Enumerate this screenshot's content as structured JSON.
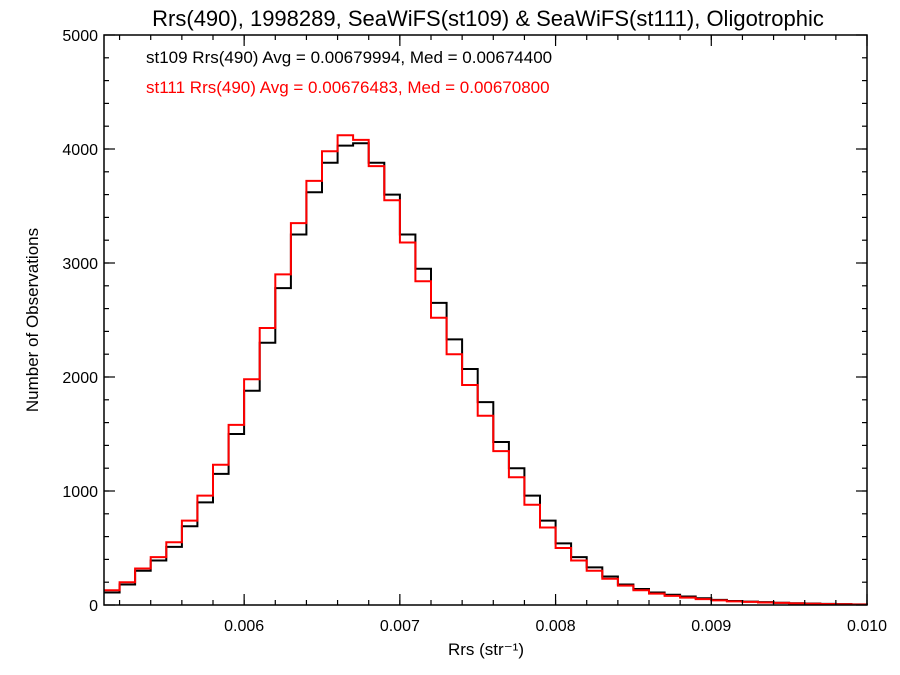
{
  "chart_data": {
    "type": "line",
    "step": true,
    "title": "Rrs(490), 1998289, SeaWiFS(st109) & SeaWiFS(st111), Oligotrophic",
    "xlabel": "Rrs (str⁻¹)",
    "ylabel": "Number of Observations",
    "xlim": [
      0.0051,
      0.01
    ],
    "ylim": [
      0,
      5000
    ],
    "xticks": [
      0.006,
      0.007,
      0.008,
      0.009,
      0.01
    ],
    "xtick_labels": [
      "0.006",
      "0.007",
      "0.008",
      "0.009",
      "0.010"
    ],
    "yticks": [
      0,
      1000,
      2000,
      3000,
      4000,
      5000
    ],
    "ytick_labels": [
      "0",
      "1000",
      "2000",
      "3000",
      "4000",
      "5000"
    ],
    "grid": false,
    "annotations": [
      {
        "text": "st109 Rrs(490) Avg = 0.00679994, Med = 0.00674400",
        "color": "#000000"
      },
      {
        "text": "st111 Rrs(490) Avg = 0.00676483, Med = 0.00670800",
        "color": "#ff0000"
      }
    ],
    "series": [
      {
        "name": "st109",
        "color": "#000000",
        "points": [
          [
            0.0051,
            110
          ],
          [
            0.0052,
            180
          ],
          [
            0.0053,
            300
          ],
          [
            0.0054,
            390
          ],
          [
            0.0055,
            510
          ],
          [
            0.0056,
            690
          ],
          [
            0.0057,
            900
          ],
          [
            0.0058,
            1150
          ],
          [
            0.0059,
            1500
          ],
          [
            0.006,
            1880
          ],
          [
            0.0061,
            2300
          ],
          [
            0.0062,
            2780
          ],
          [
            0.0063,
            3250
          ],
          [
            0.0064,
            3620
          ],
          [
            0.0065,
            3880
          ],
          [
            0.0066,
            4030
          ],
          [
            0.0067,
            4050
          ],
          [
            0.0068,
            3880
          ],
          [
            0.0069,
            3600
          ],
          [
            0.007,
            3250
          ],
          [
            0.0071,
            2950
          ],
          [
            0.0072,
            2650
          ],
          [
            0.0073,
            2330
          ],
          [
            0.0074,
            2070
          ],
          [
            0.0075,
            1780
          ],
          [
            0.0076,
            1430
          ],
          [
            0.0077,
            1200
          ],
          [
            0.0078,
            960
          ],
          [
            0.0079,
            740
          ],
          [
            0.008,
            540
          ],
          [
            0.0081,
            420
          ],
          [
            0.0082,
            330
          ],
          [
            0.0083,
            250
          ],
          [
            0.0084,
            180
          ],
          [
            0.0085,
            140
          ],
          [
            0.0086,
            110
          ],
          [
            0.0087,
            90
          ],
          [
            0.0088,
            75
          ],
          [
            0.0089,
            60
          ],
          [
            0.009,
            45
          ],
          [
            0.0091,
            35
          ],
          [
            0.0092,
            30
          ],
          [
            0.0093,
            25
          ],
          [
            0.0094,
            20
          ],
          [
            0.0095,
            16
          ],
          [
            0.0096,
            13
          ],
          [
            0.0097,
            10
          ],
          [
            0.0098,
            8
          ],
          [
            0.0099,
            5
          ],
          [
            0.01,
            3
          ]
        ]
      },
      {
        "name": "st111",
        "color": "#ff0000",
        "points": [
          [
            0.0051,
            130
          ],
          [
            0.0052,
            200
          ],
          [
            0.0053,
            320
          ],
          [
            0.0054,
            420
          ],
          [
            0.0055,
            550
          ],
          [
            0.0056,
            740
          ],
          [
            0.0057,
            960
          ],
          [
            0.0058,
            1230
          ],
          [
            0.0059,
            1580
          ],
          [
            0.006,
            1980
          ],
          [
            0.0061,
            2430
          ],
          [
            0.0062,
            2900
          ],
          [
            0.0063,
            3350
          ],
          [
            0.0064,
            3720
          ],
          [
            0.0065,
            3980
          ],
          [
            0.0066,
            4120
          ],
          [
            0.0067,
            4080
          ],
          [
            0.0068,
            3850
          ],
          [
            0.0069,
            3550
          ],
          [
            0.007,
            3180
          ],
          [
            0.0071,
            2840
          ],
          [
            0.0072,
            2520
          ],
          [
            0.0073,
            2200
          ],
          [
            0.0074,
            1930
          ],
          [
            0.0075,
            1660
          ],
          [
            0.0076,
            1350
          ],
          [
            0.0077,
            1120
          ],
          [
            0.0078,
            880
          ],
          [
            0.0079,
            680
          ],
          [
            0.008,
            500
          ],
          [
            0.0081,
            390
          ],
          [
            0.0082,
            300
          ],
          [
            0.0083,
            230
          ],
          [
            0.0084,
            170
          ],
          [
            0.0085,
            130
          ],
          [
            0.0086,
            100
          ],
          [
            0.0087,
            80
          ],
          [
            0.0088,
            65
          ],
          [
            0.0089,
            52
          ],
          [
            0.009,
            40
          ],
          [
            0.0091,
            32
          ],
          [
            0.0092,
            27
          ],
          [
            0.0093,
            22
          ],
          [
            0.0094,
            18
          ],
          [
            0.0095,
            14
          ],
          [
            0.0096,
            11
          ],
          [
            0.0097,
            9
          ],
          [
            0.0098,
            7
          ],
          [
            0.0099,
            4
          ],
          [
            0.01,
            2
          ]
        ]
      }
    ]
  }
}
